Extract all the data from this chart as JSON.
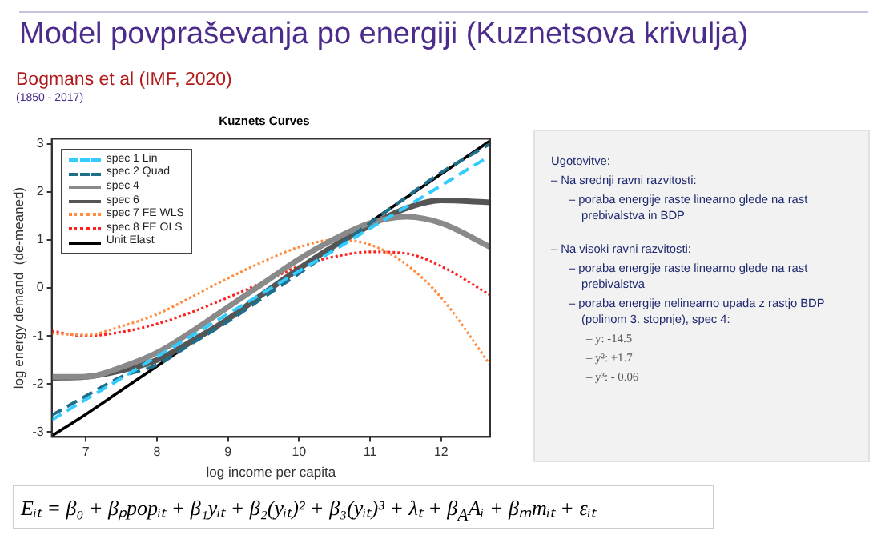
{
  "chart_data": {
    "type": "line",
    "title": "Model povpraševanja po energiji (Kuznetsova krivulja)",
    "subtitle": "Bogmans et al (IMF, 2020)",
    "annotations": [
      "(1850 - 2017)",
      "Kuznets Curves",
      "Ugotovitve:",
      "– Na srednji ravni razvitosti:",
      "– poraba energije raste linearno glede na rast prebivalstva in BDP",
      "– Na visoki ravni razvitosti:",
      "– poraba energije raste linearno glede na rast prebivalstva",
      "– poraba energije nelinearno upada z rastjo BDP (polinom 3. stopnje), spec 4:",
      "– y: -14.5",
      "– y²: +1.7",
      "– y³: - 0.06",
      "Eᵢₜ = β₀ + βₚpopᵢₜ + β₁yᵢₜ + β₂(yᵢₜ)² + β₃(yᵢₜ)³ + λₜ + β$_{A}$Aᵢ + βₘmᵢₜ + εᵢₜ"
    ],
    "xlabel": "log income per capita",
    "ylabel": "log energy demand  (de-meaned)",
    "x": [
      6.52,
      7,
      7.5,
      8,
      8.5,
      9,
      9.5,
      10,
      10.5,
      11,
      11.5,
      12,
      12.69
    ],
    "series": [
      {
        "name": "spec 1 Lin",
        "color": "#33ccff",
        "line_style": "dashed",
        "values": [
          -2.75,
          -2.32,
          -1.88,
          -1.43,
          -0.99,
          -0.54,
          -0.1,
          0.35,
          0.79,
          1.24,
          1.68,
          2.13,
          2.75
        ]
      },
      {
        "name": "spec 2 Quad",
        "color": "#1f6f8b",
        "line_style": "dashed",
        "values": [
          -2.65,
          -2.25,
          -1.85,
          -1.6,
          -1.15,
          -0.7,
          -0.2,
          0.3,
          0.82,
          1.35,
          1.88,
          2.4,
          3.0
        ]
      },
      {
        "name": "spec 4",
        "color": "#8a8a8a",
        "line_style": "solid",
        "values": [
          -1.85,
          -1.85,
          -1.65,
          -1.35,
          -0.9,
          -0.4,
          0.1,
          0.6,
          1.02,
          1.35,
          1.48,
          1.35,
          0.85
        ]
      },
      {
        "name": "spec 6",
        "color": "#555555",
        "line_style": "solid",
        "values": [
          -1.87,
          -1.85,
          -1.72,
          -1.5,
          -1.1,
          -0.65,
          -0.12,
          0.4,
          0.88,
          1.3,
          1.65,
          1.82,
          1.78
        ]
      },
      {
        "name": "spec 7 FE WLS",
        "color": "#ff8c40",
        "line_style": "dotted",
        "values": [
          -0.95,
          -0.98,
          -0.8,
          -0.55,
          -0.18,
          0.2,
          0.55,
          0.85,
          1.0,
          0.9,
          0.5,
          -0.2,
          -1.6
        ]
      },
      {
        "name": "spec 8 FE OLS",
        "color": "#ff2020",
        "line_style": "dotted",
        "values": [
          -0.9,
          -1.0,
          -0.92,
          -0.75,
          -0.5,
          -0.2,
          0.12,
          0.45,
          0.65,
          0.75,
          0.72,
          0.45,
          -0.15
        ]
      },
      {
        "name": "Unit Elast",
        "color": "#000000",
        "line_style": "solid",
        "values": [
          -3.08,
          -2.63,
          -2.13,
          -1.63,
          -1.13,
          -0.63,
          -0.13,
          0.37,
          0.87,
          1.37,
          1.87,
          2.37,
          3.06
        ]
      }
    ],
    "xlim": [
      6.52,
      12.69
    ],
    "ylim": [
      -3.1,
      3.1
    ],
    "xticks": [
      7,
      8,
      9,
      10,
      11,
      12
    ],
    "yticks": [
      -3,
      -2,
      -1,
      0,
      1,
      2,
      3
    ],
    "grid": false,
    "legend": "top left"
  }
}
